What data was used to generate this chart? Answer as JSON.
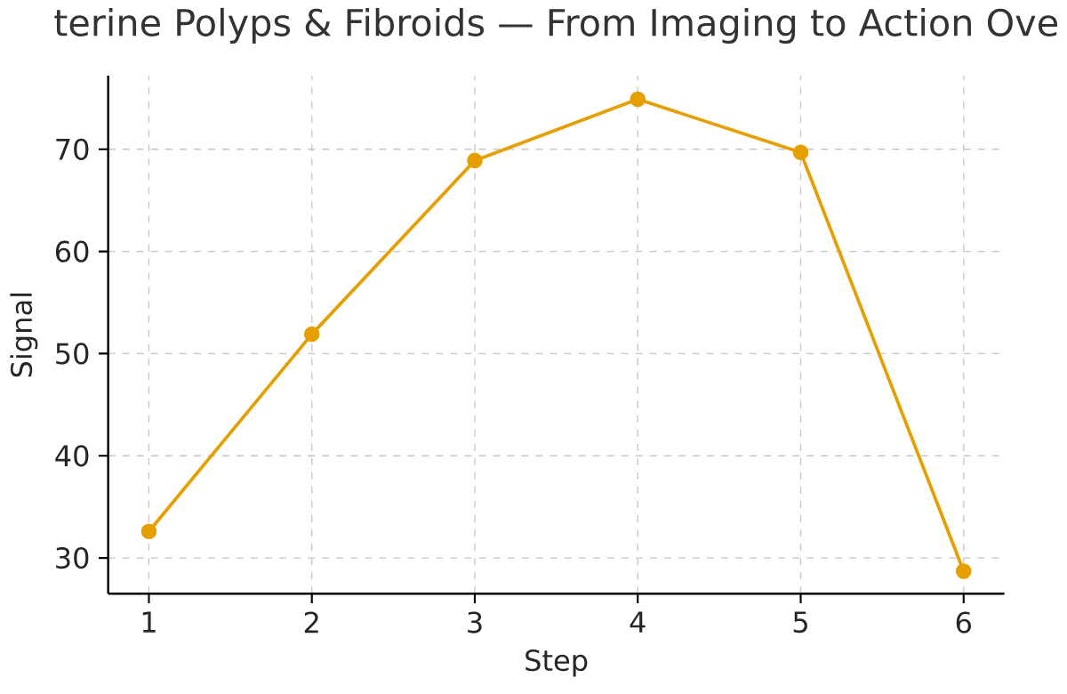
{
  "chart_data": {
    "type": "line",
    "title": "terine Polyps & Fibroids — From Imaging to Action Ove",
    "xlabel": "Step",
    "ylabel": "Signal",
    "x": [
      1,
      2,
      3,
      4,
      5,
      6
    ],
    "series": [
      {
        "color": "#e69f00",
        "values": [
          32.6,
          51.9,
          68.9,
          74.9,
          69.7,
          28.7
        ]
      }
    ],
    "xlim": [
      0.75,
      6.25
    ],
    "xticks": [
      1,
      2,
      3,
      4,
      5,
      6
    ],
    "ylim": [
      26.5,
      77.2
    ],
    "yticks": [
      30,
      40,
      50,
      60,
      70
    ],
    "grid": true,
    "marker": "circle",
    "line_style": "solid"
  }
}
